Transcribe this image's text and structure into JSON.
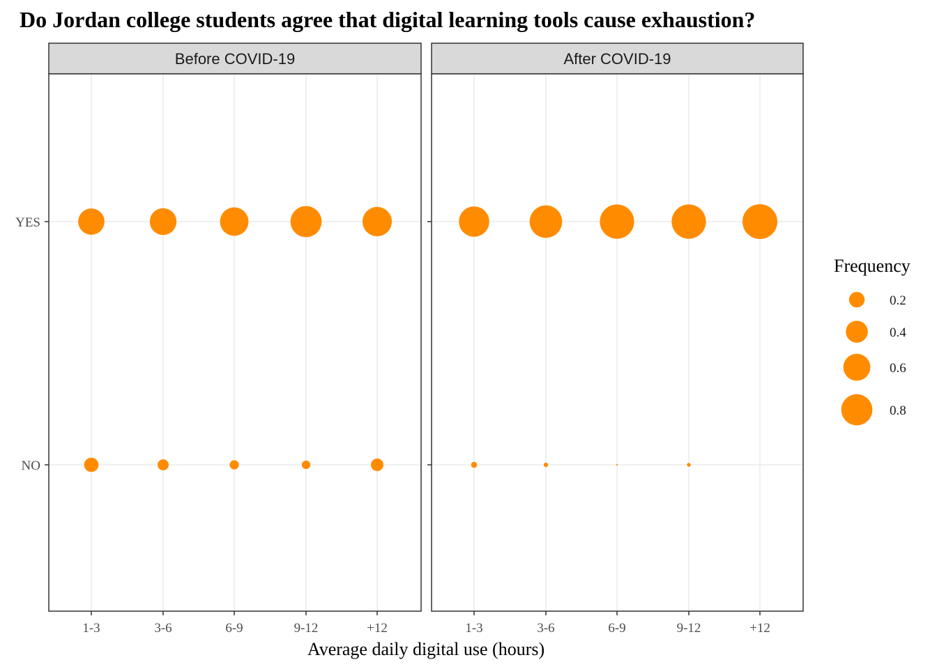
{
  "chart_data": {
    "type": "scatter",
    "title": "Do Jordan college students agree that digital learning tools cause exhaustion?",
    "xlabel": "Average daily digital use (hours)",
    "ylabel": "",
    "categories": [
      "1-3",
      "3-6",
      "6-9",
      "9-12",
      "+12"
    ],
    "y_categories": [
      "NO",
      "YES"
    ],
    "grid": true,
    "marker_color": "#FF8C00",
    "panels": [
      {
        "name": "Before COVID-19",
        "series": [
          {
            "name": "YES",
            "values": [
              0.57,
              0.59,
              0.67,
              0.8,
              0.71
            ]
          },
          {
            "name": "NO",
            "values": [
              0.17,
              0.1,
              0.07,
              0.06,
              0.13
            ]
          }
        ]
      },
      {
        "name": "After COVID-19",
        "series": [
          {
            "name": "YES",
            "values": [
              0.76,
              0.87,
              0.97,
              0.97,
              1.0
            ]
          },
          {
            "name": "NO",
            "values": [
              0.03,
              0.016,
              0.002,
              0.012,
              0.0
            ]
          }
        ]
      }
    ],
    "legend": {
      "title": "Frequency",
      "position": "right",
      "breaks": [
        "0.2",
        "0.4",
        "0.6",
        "0.8"
      ]
    }
  }
}
